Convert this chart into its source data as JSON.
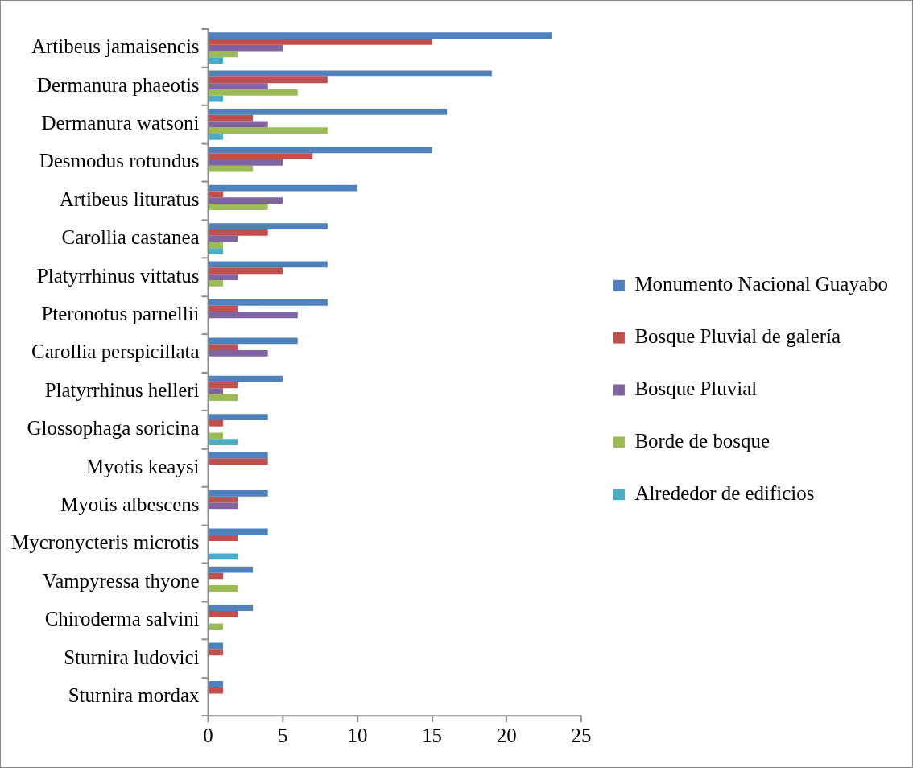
{
  "chart_data": {
    "type": "bar",
    "orientation": "horizontal",
    "categories": [
      "Artibeus jamaisencis",
      "Dermanura phaeotis",
      "Dermanura watsoni",
      "Desmodus rotundus",
      "Artibeus lituratus",
      "Carollia castanea",
      "Platyrrhinus vittatus",
      "Pteronotus parnellii",
      "Carollia perspicillata",
      "Platyrrhinus helleri",
      "Glossophaga soricina",
      "Myotis keaysi",
      "Myotis albescens",
      "Mycronycteris microtis",
      "Vampyressa thyone",
      "Chiroderma salvini",
      "Sturnira ludovici",
      "Sturnira mordax"
    ],
    "series": [
      {
        "name": "Monumento Nacional Guayabo",
        "color": "#4f81bd",
        "values": [
          23,
          19,
          16,
          15,
          10,
          8,
          8,
          8,
          6,
          5,
          4,
          4,
          4,
          4,
          3,
          3,
          1,
          1
        ]
      },
      {
        "name": "Bosque Pluvial de galería",
        "color": "#c0504d",
        "values": [
          15,
          8,
          3,
          7,
          1,
          4,
          5,
          2,
          2,
          2,
          1,
          4,
          2,
          2,
          1,
          2,
          1,
          1
        ]
      },
      {
        "name": "Bosque Pluvial",
        "color": "#8064a2",
        "values": [
          5,
          4,
          4,
          5,
          5,
          2,
          2,
          6,
          4,
          1,
          null,
          null,
          2,
          null,
          null,
          null,
          null,
          null
        ]
      },
      {
        "name": "Borde de bosque",
        "color": "#9bbb59",
        "values": [
          2,
          6,
          8,
          3,
          4,
          1,
          1,
          null,
          null,
          2,
          1,
          null,
          null,
          null,
          2,
          1,
          null,
          null
        ]
      },
      {
        "name": "Alrededor de edificios",
        "color": "#4bacc6",
        "values": [
          1,
          1,
          1,
          null,
          null,
          1,
          null,
          null,
          null,
          null,
          2,
          null,
          null,
          2,
          null,
          null,
          null,
          null
        ]
      }
    ],
    "xlim": [
      0,
      25
    ],
    "xticks": [
      0,
      5,
      10,
      15,
      20,
      25
    ],
    "grid": false,
    "legend": "right"
  }
}
